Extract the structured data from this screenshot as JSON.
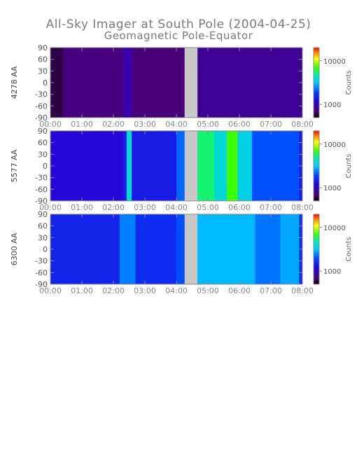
{
  "chart_data": {
    "type": "heatmap",
    "title": "All-Sky Imager at South Pole (2004-04-25)",
    "subtitle": "Geomagnetic Pole-Equator",
    "x_tick_labels": [
      "00:00",
      "01:00",
      "02:00",
      "03:00",
      "04:00",
      "05:00",
      "06:00",
      "07:00",
      "08:00"
    ],
    "x_range_hours": [
      0,
      8
    ],
    "y_range": [
      -90,
      90
    ],
    "y_ticks": [
      90,
      60,
      30,
      0,
      -30,
      -60,
      -90
    ],
    "colorbar": {
      "label": "Counts",
      "scale": "log",
      "tick_labels": [
        "10000",
        "1000"
      ],
      "tick_values": [
        10000,
        1000
      ],
      "range": [
        500,
        20000
      ]
    },
    "gap_hours": [
      4.26,
      4.67
    ],
    "panels": [
      {
        "ylabel": "4278 AA",
        "background": 800,
        "bands": [
          {
            "start_hour": 0.0,
            "end_hour": 0.4,
            "value": 600
          },
          {
            "start_hour": 0.4,
            "end_hour": 2.3,
            "value": 720
          },
          {
            "start_hour": 2.3,
            "end_hour": 2.6,
            "value": 900
          },
          {
            "start_hour": 2.6,
            "end_hour": 4.26,
            "value": 700
          },
          {
            "start_hour": 4.67,
            "end_hour": 8.0,
            "value": 820
          }
        ]
      },
      {
        "ylabel": "5577 AA",
        "background": 1400,
        "bands": [
          {
            "start_hour": 0.0,
            "end_hour": 2.3,
            "value": 1200
          },
          {
            "start_hour": 2.42,
            "end_hour": 2.58,
            "value": 4000
          },
          {
            "start_hour": 4.0,
            "end_hour": 4.26,
            "value": 2200
          },
          {
            "start_hour": 4.67,
            "end_hour": 5.2,
            "value": 5500
          },
          {
            "start_hour": 5.2,
            "end_hour": 5.6,
            "value": 3800
          },
          {
            "start_hour": 5.6,
            "end_hour": 5.95,
            "value": 7000
          },
          {
            "start_hour": 5.95,
            "end_hour": 6.4,
            "value": 3500
          },
          {
            "start_hour": 6.4,
            "end_hour": 7.9,
            "value": 2000
          }
        ]
      },
      {
        "ylabel": "6300 AA",
        "background": 1600,
        "bands": [
          {
            "start_hour": 0.0,
            "end_hour": 2.2,
            "value": 1500
          },
          {
            "start_hour": 2.2,
            "end_hour": 2.7,
            "value": 2400
          },
          {
            "start_hour": 4.0,
            "end_hour": 4.26,
            "value": 2000
          },
          {
            "start_hour": 4.67,
            "end_hour": 6.5,
            "value": 3000
          },
          {
            "start_hour": 6.5,
            "end_hour": 7.3,
            "value": 2300
          },
          {
            "start_hour": 7.3,
            "end_hour": 7.9,
            "value": 2800
          }
        ]
      }
    ]
  }
}
